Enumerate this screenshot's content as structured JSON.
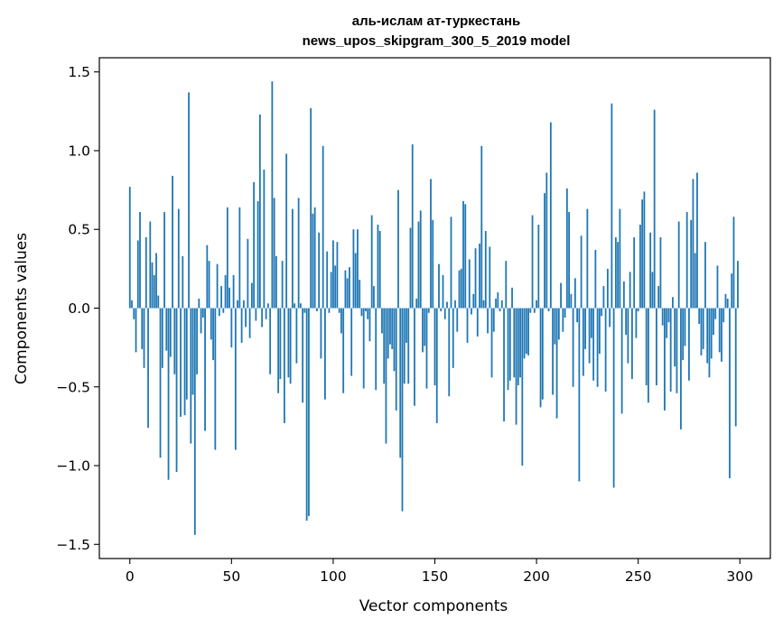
{
  "chart_data": {
    "type": "bar",
    "title_lines": [
      "аль-ислам ат-туркестань",
      "news_upos_skipgram_300_5_2019 model"
    ],
    "xlabel": "Vector components",
    "ylabel": "Components values",
    "xlim": [
      -15,
      315
    ],
    "ylim": [
      -1.59,
      1.59
    ],
    "xticks": [
      0,
      50,
      100,
      150,
      200,
      250,
      300
    ],
    "yticks": [
      -1.5,
      -1.0,
      -0.5,
      0.0,
      0.5,
      1.0,
      1.5
    ],
    "ytick_labels": [
      "−1.5",
      "−1.0",
      "−0.5",
      "0.0",
      "0.5",
      "1.0",
      "1.5"
    ],
    "grid": false,
    "bar_color": "#1f77b4",
    "values": [
      0.77,
      0.05,
      -0.07,
      -0.28,
      0.43,
      0.61,
      -0.26,
      -0.38,
      0.45,
      -0.76,
      0.55,
      0.29,
      0.21,
      0.35,
      0.08,
      -0.95,
      -0.38,
      0.61,
      -0.27,
      -1.09,
      -0.31,
      0.84,
      -0.42,
      -1.04,
      0.63,
      -0.69,
      0.33,
      -0.68,
      -0.58,
      1.37,
      -0.86,
      -0.55,
      -1.44,
      -0.42,
      0.06,
      -0.16,
      -0.06,
      -0.78,
      0.4,
      0.3,
      -0.2,
      -0.33,
      -0.9,
      0.28,
      -0.05,
      0.14,
      -0.03,
      0.21,
      0.64,
      0.13,
      -0.25,
      0.21,
      -0.9,
      0.05,
      0.64,
      -0.22,
      0.05,
      -0.12,
      0.44,
      -0.19,
      0.16,
      0.8,
      -0.08,
      0.68,
      1.23,
      -0.12,
      0.88,
      -0.07,
      0.03,
      -0.42,
      1.44,
      0.7,
      0.33,
      -0.54,
      -0.45,
      0.3,
      -0.73,
      0.98,
      -0.44,
      -0.48,
      0.63,
      0.03,
      -0.35,
      0.7,
      0.03,
      -0.6,
      -0.03,
      -1.35,
      -1.32,
      1.27,
      0.6,
      0.64,
      -0.02,
      0.48,
      -0.32,
      1.03,
      -0.58,
      0.36,
      -0.03,
      0.23,
      0.43,
      0.27,
      0.42,
      -0.03,
      -0.16,
      -0.54,
      0.24,
      0.19,
      0.26,
      -0.43,
      0.5,
      0.35,
      0.5,
      0.18,
      -0.05,
      -0.51,
      -0.02,
      -0.07,
      -0.21,
      0.59,
      0.14,
      -0.52,
      0.53,
      0.49,
      -0.16,
      -0.48,
      -0.86,
      -0.32,
      -0.23,
      -0.26,
      -0.4,
      -0.65,
      0.75,
      -0.95,
      -1.29,
      -0.48,
      -0.22,
      -0.48,
      0.51,
      1.04,
      -0.62,
      0.06,
      0.55,
      0.62,
      -0.28,
      -0.24,
      -0.51,
      -0.03,
      0.82,
      0.56,
      -0.49,
      -0.73,
      0.28,
      -0.02,
      0.21,
      -0.07,
      0.04,
      -0.56,
      0.58,
      -0.38,
      0.05,
      -0.15,
      0.24,
      0.25,
      0.68,
      0.66,
      -0.22,
      0.31,
      -0.04,
      0.09,
      0.38,
      -0.18,
      0.41,
      1.03,
      0.05,
      0.49,
      -0.16,
      0.39,
      -0.44,
      -0.15,
      0.06,
      0.1,
      -0.02,
      0.05,
      -0.72,
      0.3,
      -0.52,
      -0.46,
      0.13,
      -0.44,
      -0.74,
      -0.49,
      -0.44,
      -1.0,
      -0.32,
      -0.29,
      -0.3,
      -0.03,
      0.59,
      -0.03,
      0.05,
      0.53,
      -0.63,
      -0.58,
      0.73,
      0.86,
      -0.02,
      1.18,
      -0.55,
      -0.23,
      -0.7,
      -0.2,
      0.16,
      -0.15,
      -0.06,
      0.76,
      0.61,
      0.09,
      -0.5,
      0.19,
      -0.09,
      -1.1,
      0.46,
      -0.43,
      -0.26,
      0.63,
      -0.35,
      -0.19,
      -0.46,
      0.37,
      -0.5,
      -0.29,
      -0.05,
      0.14,
      -0.53,
      0.25,
      -0.12,
      1.3,
      -1.14,
      0.45,
      0.42,
      0.63,
      -0.67,
      0.17,
      -0.17,
      -0.35,
      0.23,
      -0.45,
      0.45,
      -0.19,
      -0.02,
      0.53,
      0.69,
      0.74,
      -0.49,
      -0.6,
      0.48,
      0.23,
      1.26,
      -0.49,
      0.14,
      0.45,
      -0.11,
      -0.65,
      -0.19,
      -0.09,
      -0.53,
      0.07,
      -0.37,
      -0.54,
      0.55,
      -0.77,
      -0.33,
      -0.24,
      0.61,
      -0.46,
      0.56,
      0.82,
      0.35,
      0.86,
      -0.1,
      -0.3,
      -0.26,
      0.42,
      -0.35,
      -0.44,
      -0.32,
      -0.17,
      -0.07,
      0.27,
      -0.28,
      -0.34,
      -0.09,
      0.09,
      0.06,
      -1.08,
      0.22,
      0.58,
      -0.75,
      0.3
    ]
  }
}
